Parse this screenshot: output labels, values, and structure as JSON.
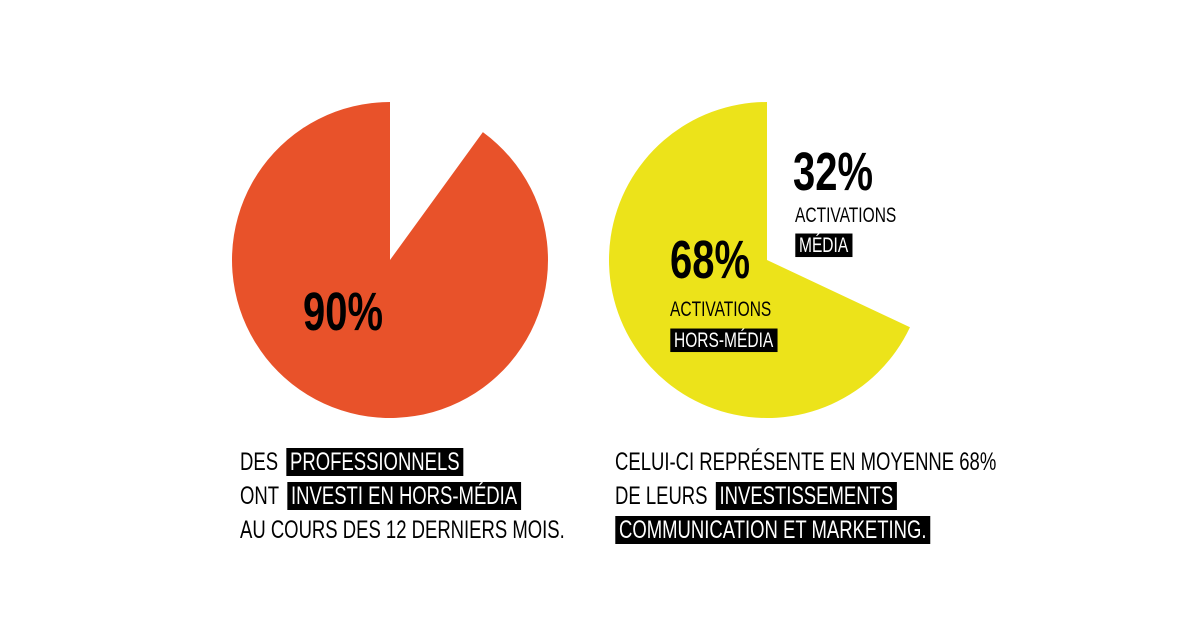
{
  "chart_data": [
    {
      "type": "pie",
      "values": [
        10,
        90
      ],
      "colors": [
        "#ffffff",
        "#e8522a"
      ],
      "value_labels": [
        null,
        "90%"
      ],
      "caption": [
        [
          {
            "text": "DES",
            "highlight": false
          },
          {
            "text": "PROFESSIONNELS",
            "highlight": true
          }
        ],
        [
          {
            "text": "ONT",
            "highlight": false
          },
          {
            "text": "INVESTI EN HORS-MÉDIA",
            "highlight": true
          }
        ],
        [
          {
            "text": "AU COURS DES 12 DERNIERS MOIS.",
            "highlight": false
          }
        ]
      ]
    },
    {
      "type": "pie",
      "values": [
        32,
        68
      ],
      "colors": [
        "#ffffff",
        "#ece31a"
      ],
      "value_labels": [
        "32%",
        "68%"
      ],
      "slice_labels": [
        [
          {
            "text": "ACTIVATIONS",
            "highlight": false
          },
          {
            "text": "MÉDIA",
            "highlight": true
          }
        ],
        [
          {
            "text": "ACTIVATIONS",
            "highlight": false
          },
          {
            "text": "HORS-MÉDIA",
            "highlight": true
          }
        ]
      ],
      "caption": [
        [
          {
            "text": "CELUI-CI REPRÉSENTE EN MOYENNE 68%",
            "highlight": false
          }
        ],
        [
          {
            "text": "DE LEURS",
            "highlight": false
          },
          {
            "text": "INVESTISSEMENTS",
            "highlight": true
          }
        ],
        [
          {
            "text": "COMMUNICATION ET MARKETING.",
            "highlight": true
          }
        ]
      ]
    }
  ]
}
